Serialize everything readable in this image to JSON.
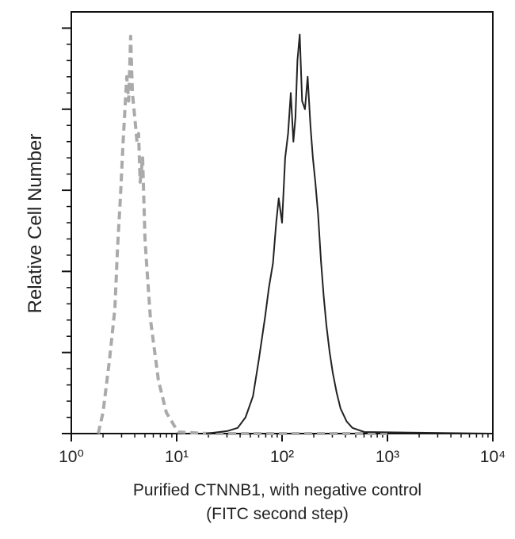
{
  "chart_data": {
    "type": "line",
    "ylabel": "Relative Cell Number",
    "xlabel": "Purified CTNNB1, with negative control",
    "xlabel_line2": "(FITC second step)",
    "xscale": "log",
    "xlim": [
      1,
      10000
    ],
    "xticks": [
      {
        "value": 1,
        "label": "10⁰"
      },
      {
        "value": 10,
        "label": "10¹"
      },
      {
        "value": 100,
        "label": "10²"
      },
      {
        "value": 1000,
        "label": "10³"
      },
      {
        "value": 10000,
        "label": "10⁴"
      }
    ],
    "xminorticks": [
      2,
      3,
      4,
      5,
      6,
      7,
      8,
      9,
      20,
      30,
      40,
      50,
      60,
      70,
      80,
      90,
      200,
      300,
      400,
      500,
      600,
      700,
      800,
      900,
      2000,
      3000,
      4000,
      5000,
      6000,
      7000,
      8000,
      9000
    ],
    "ylim": [
      0,
      5.2
    ],
    "yticks": [
      0,
      1,
      2,
      3,
      4,
      5
    ],
    "yminorticks": [
      0.2,
      0.4,
      0.6,
      0.8,
      1.2,
      1.4,
      1.6,
      1.8,
      2.2,
      2.4,
      2.6,
      2.8,
      3.2,
      3.4,
      3.6,
      3.8,
      4.2,
      4.4,
      4.6,
      4.8
    ],
    "series": [
      {
        "color": "#aaaaaa",
        "dash": true,
        "x": [
          1.8,
          2.0,
          2.3,
          2.59,
          2.75,
          2.92,
          3.1,
          3.36,
          3.5,
          3.66,
          3.8,
          4.0,
          4.2,
          4.35,
          4.5,
          4.75,
          5.0,
          5.18,
          5.65,
          6.7,
          7.97,
          10.3,
          20,
          100,
          1000
        ],
        "values": [
          0,
          0.26,
          0.9,
          1.54,
          2.3,
          2.9,
          3.6,
          4.4,
          4.1,
          4.9,
          4.2,
          3.9,
          3.6,
          3.7,
          3.1,
          3.4,
          2.4,
          2.1,
          1.4,
          0.66,
          0.26,
          0.02,
          0,
          0,
          0
        ]
      },
      {
        "color": "#222222",
        "dash": false,
        "x": [
          19,
          30,
          37.9,
          45,
          53,
          60,
          69,
          75,
          82,
          88,
          93,
          100,
          107,
          114,
          121,
          128,
          134,
          140,
          147,
          155,
          165,
          175,
          186,
          196,
          207,
          220,
          234,
          248,
          263,
          283,
          303,
          330,
          359,
          410,
          465,
          603,
          9500
        ],
        "values": [
          0,
          0.03,
          0.07,
          0.2,
          0.46,
          0.9,
          1.44,
          1.8,
          2.1,
          2.6,
          2.9,
          2.6,
          3.4,
          3.7,
          4.2,
          3.6,
          3.9,
          4.6,
          4.92,
          4.1,
          4.0,
          4.4,
          3.8,
          3.4,
          3.1,
          2.7,
          2.13,
          1.7,
          1.34,
          1.0,
          0.75,
          0.5,
          0.31,
          0.15,
          0.07,
          0.02,
          0
        ]
      }
    ]
  }
}
